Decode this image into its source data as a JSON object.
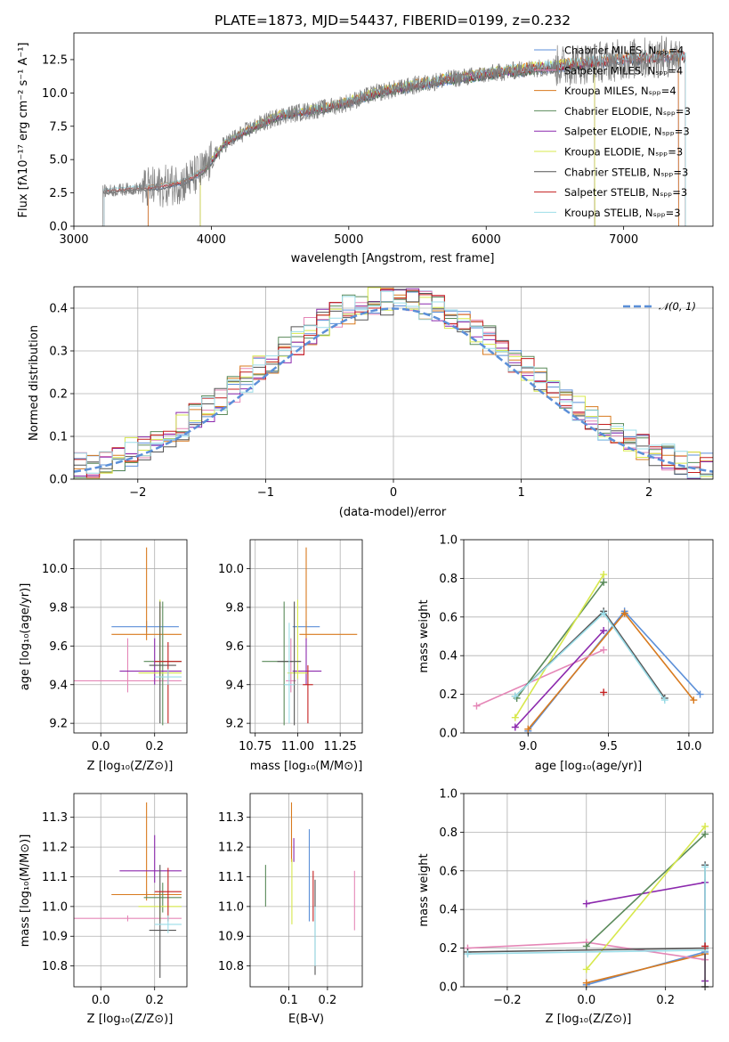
{
  "figure": {
    "title": "PLATE=1873, MJD=54437, FIBERID=0199, z=0.232"
  },
  "colors": {
    "Chabrier MILES": "#5b8fd8",
    "Salpeter MILES": "#e587b7",
    "Kroupa MILES": "#d87a1e",
    "Chabrier ELODIE": "#5a8a5a",
    "Salpeter ELODIE": "#8c29ad",
    "Kroupa ELODIE": "#d7e84c",
    "Chabrier STELIB": "#555555",
    "Salpeter STELIB": "#c41f1f",
    "Kroupa STELIB": "#9bdde8",
    "data": "#7f7f7f",
    "normal": "#5b8fd8"
  },
  "chart_data": [
    {
      "id": "spectrum",
      "type": "line",
      "title": "PLATE=1873, MJD=54437, FIBERID=0199, z=0.232",
      "xlabel": "wavelength [Angstrom, rest frame]",
      "ylabel": "Flux [fλ10⁻¹⁷ erg cm⁻² s⁻¹ A⁻¹]",
      "xlim": [
        3000,
        7650
      ],
      "ylim": [
        0,
        14.5
      ],
      "xticks": [
        "3000",
        "4000",
        "5000",
        "6000",
        "7000"
      ],
      "yticks": [
        "0.0",
        "2.5",
        "5.0",
        "7.5",
        "10.0",
        "12.5"
      ],
      "legend_position": "top-right",
      "series": [
        {
          "name": "Chabrier MILES, Nₛₚₚ=4",
          "key": "Chabrier MILES",
          "range": [
            3540,
            7400
          ]
        },
        {
          "name": "Salpeter MILES, Nₛₚₚ=4",
          "key": "Salpeter MILES",
          "range": [
            3540,
            7400
          ]
        },
        {
          "name": "Kroupa MILES, Nₛₚₚ=4",
          "key": "Kroupa MILES",
          "range": [
            3540,
            7400
          ]
        },
        {
          "name": "Chabrier ELODIE, Nₛₚₚ=3",
          "key": "Chabrier ELODIE",
          "range": [
            3920,
            6790
          ]
        },
        {
          "name": "Salpeter ELODIE, Nₛₚₚ=3",
          "key": "Salpeter ELODIE",
          "range": [
            3920,
            6790
          ]
        },
        {
          "name": "Kroupa ELODIE, Nₛₚₚ=3",
          "key": "Kroupa ELODIE",
          "range": [
            3920,
            6790
          ]
        },
        {
          "name": "Chabrier STELIB, Nₛₚₚ=3",
          "key": "Chabrier STELIB",
          "range": [
            3220,
            7450
          ]
        },
        {
          "name": "Salpeter STELIB, Nₛₚₚ=3",
          "key": "Salpeter STELIB",
          "range": [
            3220,
            7450
          ]
        },
        {
          "name": "Kroupa STELIB, Nₛₚₚ=3",
          "key": "Kroupa STELIB",
          "range": [
            3220,
            7450
          ]
        }
      ],
      "continuum": [
        [
          3200,
          2.6
        ],
        [
          3400,
          2.8
        ],
        [
          3600,
          2.9
        ],
        [
          3800,
          3.3
        ],
        [
          3950,
          4.2
        ],
        [
          4100,
          6.2
        ],
        [
          4300,
          7.4
        ],
        [
          4500,
          8.3
        ],
        [
          4800,
          8.8
        ],
        [
          5000,
          9.3
        ],
        [
          5200,
          10.0
        ],
        [
          5400,
          10.4
        ],
        [
          5700,
          11.0
        ],
        [
          6000,
          11.4
        ],
        [
          6300,
          11.8
        ],
        [
          6600,
          12.1
        ],
        [
          7000,
          12.5
        ],
        [
          7400,
          12.8
        ]
      ]
    },
    {
      "id": "residuals",
      "type": "histogram",
      "xlabel": "(data-model)/error",
      "ylabel": "Normed distribution",
      "xlim": [
        -2.5,
        2.5
      ],
      "ylim": [
        0,
        0.45
      ],
      "xticks": [
        "−2",
        "−1",
        "0",
        "1",
        "2"
      ],
      "yticks": [
        "0.0",
        "0.1",
        "0.2",
        "0.3",
        "0.4"
      ],
      "legend": "𝒩(0, 1)",
      "bins": 50
    },
    {
      "id": "age-vs-Z",
      "type": "errorbar",
      "xlabel": "Z [log₁₀(Z/Z⊙)]",
      "ylabel": "age  [log₁₀(age/yr)]",
      "xlim": [
        -0.1,
        0.32
      ],
      "ylim": [
        9.15,
        10.15
      ],
      "xticks": [
        0.0,
        0.2
      ],
      "yticks": [
        9.2,
        9.4,
        9.6,
        9.8,
        10.0
      ],
      "points": [
        {
          "key": "Chabrier MILES",
          "x": 0.17,
          "xerr": [
            0.13,
            0.12
          ],
          "y": 9.7,
          "yerr": [
            0.03,
            0.03
          ]
        },
        {
          "key": "Salpeter MILES",
          "x": 0.1,
          "xerr": [
            0.2,
            0.2
          ],
          "y": 9.42,
          "yerr": [
            0.06,
            0.22
          ]
        },
        {
          "key": "Kroupa MILES",
          "x": 0.17,
          "xerr": [
            0.13,
            0.13
          ],
          "y": 9.66,
          "yerr": [
            0.03,
            0.45
          ]
        },
        {
          "key": "Chabrier ELODIE",
          "x": 0.23,
          "xerr": [
            0.07,
            0.07
          ],
          "y": 9.52,
          "yerr": [
            0.33,
            0.31
          ]
        },
        {
          "key": "Salpeter ELODIE",
          "x": 0.2,
          "xerr": [
            0.13,
            0.1
          ],
          "y": 9.47,
          "yerr": [
            0.07,
            0.17
          ]
        },
        {
          "key": "Kroupa ELODIE",
          "x": 0.22,
          "xerr": [
            0.08,
            0.08
          ],
          "y": 9.46,
          "yerr": [
            0.03,
            0.38
          ]
        },
        {
          "key": "Chabrier STELIB",
          "x": 0.22,
          "xerr": [
            0.04,
            0.06
          ],
          "y": 9.5,
          "yerr": [
            0.3,
            0.33
          ]
        },
        {
          "key": "Salpeter STELIB",
          "x": 0.25,
          "xerr": [
            0.05,
            0.05
          ],
          "y": 9.52,
          "yerr": [
            0.32,
            0.1
          ]
        },
        {
          "key": "Kroupa STELIB",
          "x": 0.25,
          "xerr": [
            0.05,
            0.05
          ],
          "y": 9.44,
          "yerr": [
            0.04,
            0.04
          ]
        }
      ]
    },
    {
      "id": "age-vs-mass",
      "type": "errorbar",
      "xlabel": "mass [log₁₀(M/M⊙)]",
      "xlim": [
        10.72,
        11.38
      ],
      "ylim": [
        9.15,
        10.15
      ],
      "xticks": [
        10.75,
        11.0,
        11.25
      ],
      "yticks": [
        9.2,
        9.4,
        9.6,
        9.8,
        10.0
      ],
      "points": [
        {
          "key": "Chabrier MILES",
          "x": 11.05,
          "xerr": [
            0.08,
            0.08
          ],
          "y": 9.7,
          "yerr": [
            0.03,
            0.03
          ]
        },
        {
          "key": "Salpeter MILES",
          "x": 10.96,
          "xerr": [
            0.03,
            0.03
          ],
          "y": 9.42,
          "yerr": [
            0.06,
            0.22
          ]
        },
        {
          "key": "Kroupa MILES",
          "x": 11.05,
          "xerr": [
            0.04,
            0.3
          ],
          "y": 9.66,
          "yerr": [
            0.03,
            0.45
          ]
        },
        {
          "key": "Chabrier ELODIE",
          "x": 10.92,
          "xerr": [
            0.13,
            0.05
          ],
          "y": 9.52,
          "yerr": [
            0.33,
            0.31
          ]
        },
        {
          "key": "Salpeter ELODIE",
          "x": 11.05,
          "xerr": [
            0.08,
            0.09
          ],
          "y": 9.47,
          "yerr": [
            0.07,
            0.17
          ]
        },
        {
          "key": "Kroupa ELODIE",
          "x": 11.0,
          "xerr": [
            0.06,
            0.06
          ],
          "y": 9.46,
          "yerr": [
            0.03,
            0.38
          ]
        },
        {
          "key": "Chabrier STELIB",
          "x": 10.98,
          "xerr": [
            0.1,
            0.04
          ],
          "y": 9.52,
          "yerr": [
            0.33,
            0.31
          ]
        },
        {
          "key": "Salpeter STELIB",
          "x": 11.06,
          "xerr": [
            0.03,
            0.03
          ],
          "y": 9.4,
          "yerr": [
            0.2,
            0.1
          ]
        },
        {
          "key": "Kroupa STELIB",
          "x": 10.95,
          "xerr": [
            0.03,
            0.03
          ],
          "y": 9.4,
          "yerr": [
            0.2,
            0.32
          ]
        }
      ]
    },
    {
      "id": "weight-vs-age",
      "type": "line",
      "xlabel": "age  [log₁₀(age/yr)]",
      "ylabel": "mass weight",
      "xlim": [
        8.6,
        10.15
      ],
      "ylim": [
        0,
        1.0
      ],
      "xticks": [
        9.0,
        9.5,
        10.0
      ],
      "yticks": [
        0.0,
        0.2,
        0.4,
        0.6,
        0.8,
        1.0
      ],
      "series": [
        {
          "key": "Chabrier MILES",
          "x": [
            9.0,
            9.6,
            10.07
          ],
          "y": [
            0.01,
            0.63,
            0.2
          ]
        },
        {
          "key": "Kroupa MILES",
          "x": [
            9.0,
            9.6,
            10.03
          ],
          "y": [
            0.02,
            0.62,
            0.17
          ]
        },
        {
          "key": "Salpeter MILES",
          "x": [
            8.68,
            9.47
          ],
          "y": [
            0.14,
            0.43
          ]
        },
        {
          "key": "Salpeter ELODIE",
          "x": [
            8.92,
            9.47
          ],
          "y": [
            0.03,
            0.53
          ]
        },
        {
          "key": "Chabrier ELODIE",
          "x": [
            8.93,
            9.47
          ],
          "y": [
            0.18,
            0.78
          ]
        },
        {
          "key": "Kroupa ELODIE",
          "x": [
            8.92,
            9.47
          ],
          "y": [
            0.08,
            0.82
          ]
        },
        {
          "key": "Chabrier STELIB",
          "x": [
            8.92,
            9.47,
            9.85
          ],
          "y": [
            0.19,
            0.63,
            0.18
          ]
        },
        {
          "key": "Kroupa STELIB",
          "x": [
            8.92,
            9.47,
            9.85
          ],
          "y": [
            0.19,
            0.62,
            0.17
          ]
        },
        {
          "key": "Salpeter STELIB",
          "x": [
            9.47
          ],
          "y": [
            0.21
          ]
        }
      ]
    },
    {
      "id": "mass-vs-Z",
      "type": "errorbar",
      "xlabel": "Z [log₁₀(Z/Z⊙)]",
      "ylabel": "mass [log₁₀(M/M⊙)]",
      "xlim": [
        -0.1,
        0.32
      ],
      "ylim": [
        10.73,
        11.38
      ],
      "xticks": [
        0.0,
        0.2
      ],
      "yticks": [
        10.8,
        10.9,
        11.0,
        11.1,
        11.2,
        11.3
      ],
      "points": [
        {
          "key": "Chabrier MILES",
          "x": 0.17,
          "xerr": [
            0.13,
            0.12
          ],
          "y": 11.04,
          "yerr": [
            0.01,
            0.01
          ]
        },
        {
          "key": "Salpeter MILES",
          "x": 0.1,
          "xerr": [
            0.2,
            0.2
          ],
          "y": 10.96,
          "yerr": [
            0.01,
            0.01
          ]
        },
        {
          "key": "Kroupa MILES",
          "x": 0.17,
          "xerr": [
            0.13,
            0.13
          ],
          "y": 11.04,
          "yerr": [
            0.02,
            0.31
          ]
        },
        {
          "key": "Chabrier ELODIE",
          "x": 0.23,
          "xerr": [
            0.07,
            0.07
          ],
          "y": 11.03,
          "yerr": [
            0.05,
            0.05
          ]
        },
        {
          "key": "Salpeter ELODIE",
          "x": 0.2,
          "xerr": [
            0.13,
            0.1
          ],
          "y": 11.12,
          "yerr": [
            0.04,
            0.12
          ]
        },
        {
          "key": "Kroupa ELODIE",
          "x": 0.22,
          "xerr": [
            0.08,
            0.08
          ],
          "y": 11.0,
          "yerr": [
            0.05,
            0.05
          ]
        },
        {
          "key": "Chabrier STELIB",
          "x": 0.22,
          "xerr": [
            0.04,
            0.06
          ],
          "y": 10.92,
          "yerr": [
            0.16,
            0.22
          ]
        },
        {
          "key": "Salpeter STELIB",
          "x": 0.25,
          "xerr": [
            0.05,
            0.05
          ],
          "y": 11.05,
          "yerr": [
            0.1,
            0.08
          ]
        },
        {
          "key": "Kroupa STELIB",
          "x": 0.25,
          "xerr": [
            0.05,
            0.05
          ],
          "y": 10.94,
          "yerr": [
            0.03,
            0.03
          ]
        }
      ]
    },
    {
      "id": "mass-vs-EBV",
      "type": "errorbar",
      "xlabel": "E(B-V)",
      "xlim": [
        0.0,
        0.29
      ],
      "ylim": [
        10.73,
        11.38
      ],
      "xticks": [
        0.1,
        0.2
      ],
      "yticks": [
        10.8,
        10.9,
        11.0,
        11.1,
        11.2,
        11.3
      ],
      "points": [
        {
          "key": "Chabrier MILES",
          "x": 0.153,
          "y": 11.1,
          "yerr": [
            0.15,
            0.16
          ]
        },
        {
          "key": "Salpeter MILES",
          "x": 0.27,
          "y": 11.02,
          "yerr": [
            0.1,
            0.1
          ]
        },
        {
          "key": "Kroupa MILES",
          "x": 0.107,
          "y": 11.2,
          "yerr": [
            0.05,
            0.15
          ]
        },
        {
          "key": "Chabrier ELODIE",
          "x": 0.04,
          "y": 11.07,
          "yerr": [
            0.07,
            0.07
          ]
        },
        {
          "key": "Salpeter ELODIE",
          "x": 0.113,
          "y": 11.19,
          "yerr": [
            0.04,
            0.04
          ]
        },
        {
          "key": "Kroupa ELODIE",
          "x": 0.108,
          "y": 11.05,
          "yerr": [
            0.11,
            0.11
          ]
        },
        {
          "key": "Chabrier STELIB",
          "x": 0.168,
          "y": 10.93,
          "yerr": [
            0.16,
            0.16
          ]
        },
        {
          "key": "Salpeter STELIB",
          "x": 0.163,
          "y": 11.05,
          "yerr": [
            0.1,
            0.07
          ]
        },
        {
          "key": "Kroupa STELIB",
          "x": 0.168,
          "y": 10.9,
          "yerr": [
            0.1,
            0.1
          ]
        }
      ]
    },
    {
      "id": "weight-vs-Z",
      "type": "line",
      "xlabel": "Z [log₁₀(Z/Z⊙)]",
      "ylabel": "mass weight",
      "xlim": [
        -0.31,
        0.32
      ],
      "ylim": [
        0,
        1.0
      ],
      "xticks": [
        -0.2,
        0.0,
        0.2
      ],
      "yticks": [
        0.0,
        0.2,
        0.4,
        0.6,
        0.8,
        1.0
      ],
      "series": [
        {
          "key": "Chabrier MILES",
          "x": [
            0.0,
            0.3
          ],
          "y": [
            0.01,
            0.18
          ]
        },
        {
          "key": "Kroupa MILES",
          "x": [
            0.0,
            0.3
          ],
          "y": [
            0.02,
            0.17
          ]
        },
        {
          "key": "Salpeter MILES",
          "x": [
            -0.3,
            0.0,
            0.3
          ],
          "y": [
            0.2,
            0.23,
            0.14
          ]
        },
        {
          "key": "Salpeter ELODIE",
          "x": [
            0.0,
            0.3,
            0.3
          ],
          "y": [
            0.43,
            0.54,
            0.03
          ]
        },
        {
          "key": "Chabrier ELODIE",
          "x": [
            0.0,
            0.3
          ],
          "y": [
            0.21,
            0.79
          ]
        },
        {
          "key": "Kroupa ELODIE",
          "x": [
            0.0,
            0.3
          ],
          "y": [
            0.09,
            0.83
          ]
        },
        {
          "key": "Chabrier STELIB",
          "x": [
            -0.3,
            0.3,
            0.3,
            0.3
          ],
          "y": [
            0.18,
            0.2,
            0.63,
            0.0
          ]
        },
        {
          "key": "Kroupa STELIB",
          "x": [
            -0.3,
            0.3,
            0.3
          ],
          "y": [
            0.17,
            0.19,
            0.62
          ]
        },
        {
          "key": "Salpeter STELIB",
          "x": [
            0.3
          ],
          "y": [
            0.21
          ]
        }
      ]
    }
  ]
}
